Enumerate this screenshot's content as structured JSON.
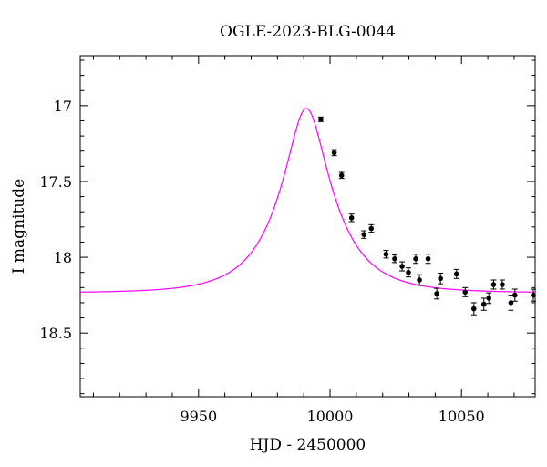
{
  "chart_data": {
    "type": "scatter",
    "title": "OGLE-2023-BLG-0044",
    "xlabel": "HJD - 2450000",
    "ylabel": "I magnitude",
    "xlim": [
      9905,
      10078
    ],
    "ylim": [
      18.92,
      16.67
    ],
    "y_inverted": true,
    "x_ticks": [
      9950,
      10000,
      10050
    ],
    "y_ticks": [
      17,
      17.5,
      18,
      18.5
    ],
    "grid": false,
    "series": [
      {
        "kind": "points_with_errorbars",
        "color": "#000000",
        "points": [
          {
            "x": 9996.5,
            "y": 17.09,
            "err": 0.015
          },
          {
            "x": 10001.6,
            "y": 17.31,
            "err": 0.02
          },
          {
            "x": 10004.4,
            "y": 17.46,
            "err": 0.02
          },
          {
            "x": 10008.2,
            "y": 17.74,
            "err": 0.025
          },
          {
            "x": 10012.9,
            "y": 17.85,
            "err": 0.025
          },
          {
            "x": 10015.7,
            "y": 17.81,
            "err": 0.025
          },
          {
            "x": 10021.3,
            "y": 17.98,
            "err": 0.025
          },
          {
            "x": 10024.6,
            "y": 18.01,
            "err": 0.025
          },
          {
            "x": 10027.4,
            "y": 18.06,
            "err": 0.03
          },
          {
            "x": 10029.8,
            "y": 18.1,
            "err": 0.03
          },
          {
            "x": 10032.6,
            "y": 18.01,
            "err": 0.03
          },
          {
            "x": 10034.0,
            "y": 18.15,
            "err": 0.035
          },
          {
            "x": 10037.3,
            "y": 18.01,
            "err": 0.03
          },
          {
            "x": 10040.6,
            "y": 18.24,
            "err": 0.035
          },
          {
            "x": 10042.0,
            "y": 18.14,
            "err": 0.035
          },
          {
            "x": 10048.1,
            "y": 18.11,
            "err": 0.03
          },
          {
            "x": 10051.4,
            "y": 18.23,
            "err": 0.03
          },
          {
            "x": 10054.7,
            "y": 18.34,
            "err": 0.04
          },
          {
            "x": 10058.5,
            "y": 18.31,
            "err": 0.04
          },
          {
            "x": 10060.4,
            "y": 18.27,
            "err": 0.035
          },
          {
            "x": 10062.2,
            "y": 18.18,
            "err": 0.03
          },
          {
            "x": 10065.5,
            "y": 18.18,
            "err": 0.03
          },
          {
            "x": 10068.8,
            "y": 18.3,
            "err": 0.05
          },
          {
            "x": 10070.3,
            "y": 18.25,
            "err": 0.04
          },
          {
            "x": 10077.3,
            "y": 18.25,
            "err": 0.04
          }
        ]
      },
      {
        "kind": "model_curve",
        "color": "#ff00ff",
        "model": {
          "t0": 9991,
          "u0": 0.34,
          "tE": 20,
          "base": 18.235
        }
      }
    ]
  }
}
